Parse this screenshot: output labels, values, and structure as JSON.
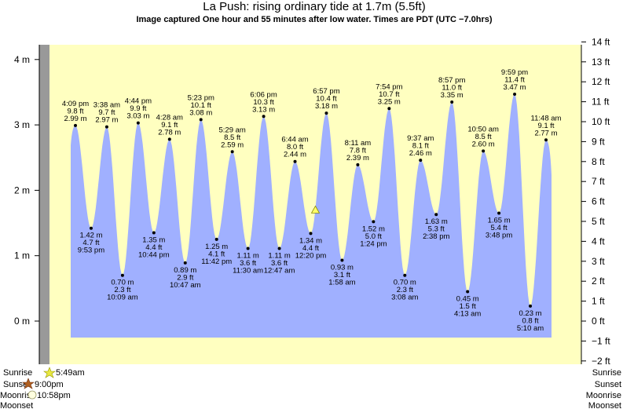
{
  "chart_data": {
    "type": "area",
    "title": "La Push: rising  ordinary tide at 1.7m (5.5ft)",
    "subtitle": "Image captured One hour and 55 minutes after low water. Times are PDT (UTC −7.0hrs)",
    "ylim_m": [
      -0.63,
      4.4
    ],
    "ylim_ft": [
      -2,
      14
    ],
    "left_ticks": [
      {
        "value": 0,
        "label": "0 m"
      },
      {
        "value": 1,
        "label": "1 m"
      },
      {
        "value": 2,
        "label": "2 m"
      },
      {
        "value": 3,
        "label": "3 m"
      },
      {
        "value": 4,
        "label": "4 m"
      }
    ],
    "right_ticks": [
      {
        "value": -2,
        "label": "−2 ft"
      },
      {
        "value": -1,
        "label": "−1 ft"
      },
      {
        "value": 0,
        "label": "0 ft"
      },
      {
        "value": 1,
        "label": "1 ft"
      },
      {
        "value": 2,
        "label": "2 ft"
      },
      {
        "value": 3,
        "label": "3 ft"
      },
      {
        "value": 4,
        "label": "4 ft"
      },
      {
        "value": 5,
        "label": "5 ft"
      },
      {
        "value": 6,
        "label": "6 ft"
      },
      {
        "value": 7,
        "label": "7 ft"
      },
      {
        "value": 8,
        "label": "8 ft"
      },
      {
        "value": 9,
        "label": "9 ft"
      },
      {
        "value": 10,
        "label": "10 ft"
      },
      {
        "value": 11,
        "label": "11 ft"
      },
      {
        "value": 12,
        "label": "12 ft"
      },
      {
        "value": 13,
        "label": "13 ft"
      },
      {
        "value": 14,
        "label": "14 ft"
      }
    ],
    "extremes": [
      {
        "type": "high",
        "time": "4:09 pm",
        "ft": "9.8 ft",
        "m": 2.99,
        "m_label": "2.99 m"
      },
      {
        "type": "low",
        "time": "9:53 pm",
        "ft": "4.7 ft",
        "m": 1.42,
        "m_label": "1.42 m"
      },
      {
        "type": "high",
        "time": "3:38 am",
        "ft": "9.7 ft",
        "m": 2.97,
        "m_label": "2.97 m"
      },
      {
        "type": "low",
        "time": "10:09 am",
        "ft": "2.3 ft",
        "m": 0.7,
        "m_label": "0.70 m"
      },
      {
        "type": "high",
        "time": "4:44 pm",
        "ft": "9.9 ft",
        "m": 3.03,
        "m_label": "3.03 m"
      },
      {
        "type": "low",
        "time": "10:44 pm",
        "ft": "4.4 ft",
        "m": 1.35,
        "m_label": "1.35 m"
      },
      {
        "type": "high",
        "time": "4:28 am",
        "ft": "9.1 ft",
        "m": 2.78,
        "m_label": "2.78 m"
      },
      {
        "type": "low",
        "time": "10:47 am",
        "ft": "2.9 ft",
        "m": 0.89,
        "m_label": "0.89 m"
      },
      {
        "type": "high",
        "time": "5:23 pm",
        "ft": "10.1 ft",
        "m": 3.08,
        "m_label": "3.08 m"
      },
      {
        "type": "low",
        "time": "11:42 pm",
        "ft": "4.1 ft",
        "m": 1.25,
        "m_label": "1.25 m"
      },
      {
        "type": "high",
        "time": "5:29 am",
        "ft": "8.5 ft",
        "m": 2.59,
        "m_label": "2.59 m"
      },
      {
        "type": "low",
        "time": "11:30 am",
        "ft": "3.6 ft",
        "m": 1.11,
        "m_label": "1.11 m"
      },
      {
        "type": "high",
        "time": "6:06 pm",
        "ft": "10.3 ft",
        "m": 3.13,
        "m_label": "3.13 m"
      },
      {
        "type": "low",
        "time": "12:47 am",
        "ft": "3.6 ft",
        "m": 1.11,
        "m_label": "1.11 m"
      },
      {
        "type": "high",
        "time": "6:44 am",
        "ft": "8.0 ft",
        "m": 2.44,
        "m_label": "2.44 m"
      },
      {
        "type": "low",
        "time": "12:20 pm",
        "ft": "4.4 ft",
        "m": 1.34,
        "m_label": "1.34 m"
      },
      {
        "type": "high",
        "time": "6:57 pm",
        "ft": "10.4 ft",
        "m": 3.18,
        "m_label": "3.18 m"
      },
      {
        "type": "low",
        "time": "1:58 am",
        "ft": "3.1 ft",
        "m": 0.93,
        "m_label": "0.93 m"
      },
      {
        "type": "high",
        "time": "8:11 am",
        "ft": "7.8 ft",
        "m": 2.39,
        "m_label": "2.39 m"
      },
      {
        "type": "low",
        "time": "1:24 pm",
        "ft": "5.0 ft",
        "m": 1.52,
        "m_label": "1.52 m"
      },
      {
        "type": "high",
        "time": "7:54 pm",
        "ft": "10.7 ft",
        "m": 3.25,
        "m_label": "3.25 m"
      },
      {
        "type": "low",
        "time": "3:08 am",
        "ft": "2.3 ft",
        "m": 0.7,
        "m_label": "0.70 m"
      },
      {
        "type": "high",
        "time": "9:37 am",
        "ft": "8.1 ft",
        "m": 2.46,
        "m_label": "2.46 m"
      },
      {
        "type": "low",
        "time": "2:38 pm",
        "ft": "5.3 ft",
        "m": 1.63,
        "m_label": "1.63 m"
      },
      {
        "type": "high",
        "time": "8:57 pm",
        "ft": "11.0 ft",
        "m": 3.35,
        "m_label": "3.35 m"
      },
      {
        "type": "low",
        "time": "4:13 am",
        "ft": "1.5 ft",
        "m": 0.45,
        "m_label": "0.45 m"
      },
      {
        "type": "high",
        "time": "10:50 am",
        "ft": "8.5 ft",
        "m": 2.6,
        "m_label": "2.60 m"
      },
      {
        "type": "low",
        "time": "3:48 pm",
        "ft": "5.4 ft",
        "m": 1.65,
        "m_label": "1.65 m"
      },
      {
        "type": "high",
        "time": "9:59 pm",
        "ft": "11.4 ft",
        "m": 3.47,
        "m_label": "3.47 m"
      },
      {
        "type": "low",
        "time": "5:10 am",
        "ft": "0.8 ft",
        "m": 0.23,
        "m_label": "0.23 m"
      },
      {
        "type": "high",
        "time": "11:48 am",
        "ft": "9.1 ft",
        "m": 2.77,
        "m_label": "2.77 m"
      }
    ],
    "current_level_m": 1.7,
    "legend_left": {
      "sunrise": "Sunrise",
      "sunset": "Sunset",
      "moonrise": "Moonrise",
      "moonset": "Moonset"
    },
    "legend_right": {
      "sunrise": "Sunrise",
      "sunset": "Sunset",
      "moonrise": "Moonrise",
      "moonset": "Moonset"
    },
    "sun_moon_times": {
      "sunrise": "5:49am",
      "sunset": "9:00pm",
      "moonrise": "10:58pm"
    },
    "colors": {
      "plot_bg": "#ffffc0",
      "water": "#a0b0ff",
      "left_bar": "#999999",
      "marker": "#ffff66",
      "sun_icon": "#e8e840",
      "sunset_icon": "#b06020"
    }
  }
}
